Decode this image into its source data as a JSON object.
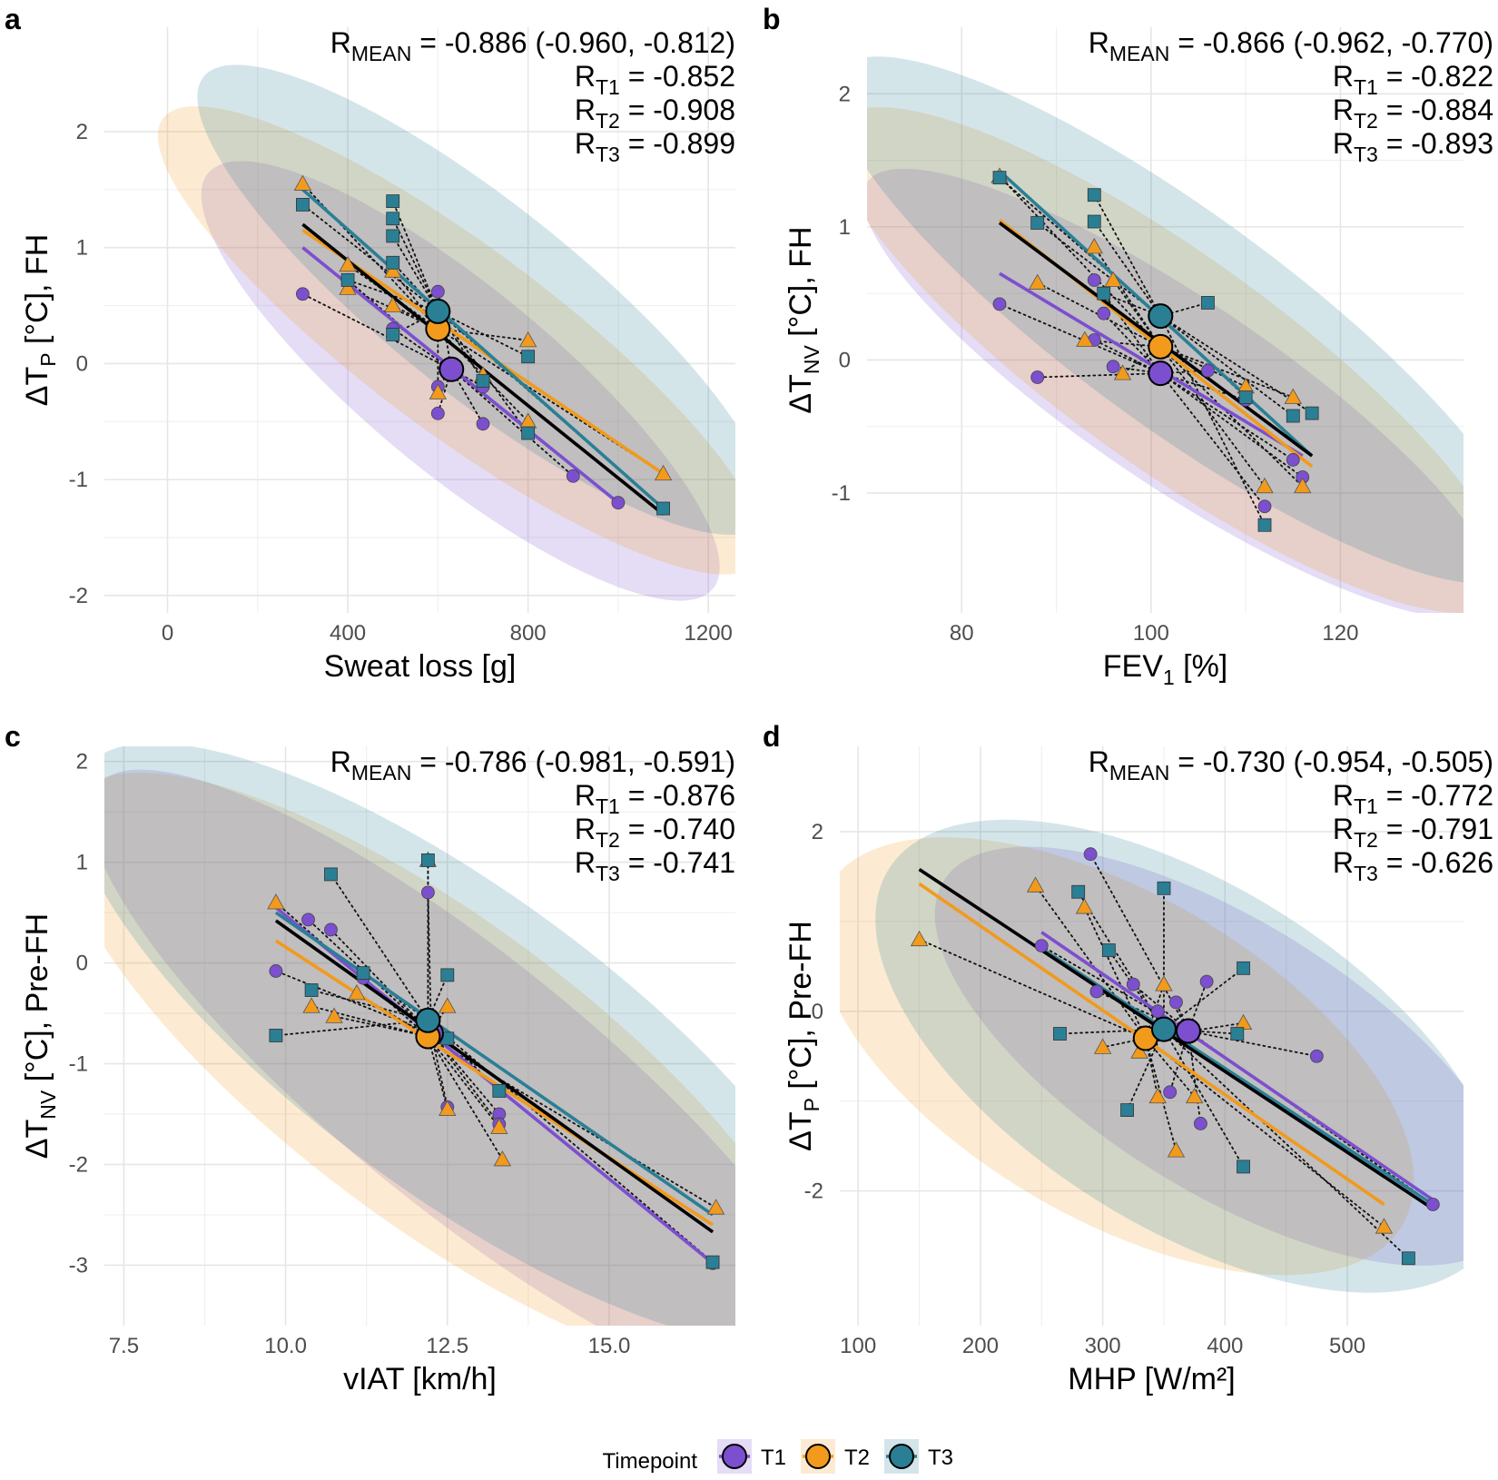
{
  "colors": {
    "T1": "#7c4fcf",
    "T2": "#f29a1c",
    "T3": "#2a7f95",
    "mean": "#000000",
    "grid": "#e6e6e6"
  },
  "legend": {
    "title": "Timepoint",
    "items": [
      {
        "label": "T1",
        "color": "#7c4fcf"
      },
      {
        "label": "T2",
        "color": "#f29a1c"
      },
      {
        "label": "T3",
        "color": "#2a7f95"
      }
    ]
  },
  "chart_data": [
    {
      "panel": "a",
      "type": "scatter",
      "xlabel": "Sweat loss [g]",
      "ylabel": {
        "main": "ΔT",
        "sub": "P",
        "rest": " [°C], FH"
      },
      "xlim": [
        -140,
        1260
      ],
      "ylim": [
        -2.15,
        2.9
      ],
      "xticks": [
        0,
        400,
        800,
        1200
      ],
      "xtick_labels": [
        "0",
        "400",
        "800",
        "1200"
      ],
      "yticks": [
        -2,
        -1,
        0,
        1,
        2
      ],
      "ytick_labels": [
        "-2",
        "-1",
        "0",
        "1",
        "2"
      ],
      "stats": [
        {
          "pre": "R",
          "sub": "MEAN",
          "post": " = -0.886 (-0.960, -0.812)"
        },
        {
          "pre": "R",
          "sub": "T1",
          "post": " = -0.852"
        },
        {
          "pre": "R",
          "sub": "T2",
          "post": " = -0.908"
        },
        {
          "pre": "R",
          "sub": "T3",
          "post": " = -0.899"
        }
      ],
      "series": [
        {
          "name": "T1",
          "mean": [
            630,
            -0.05
          ],
          "line": [
            [
              300,
              1.0
            ],
            [
              1000,
              -1.2
            ]
          ],
          "ellipse": {
            "cx": 650,
            "cy": -0.15,
            "rx": 560,
            "ry": 0.8,
            "angle_data": [
              1,
              -0.0032
            ]
          },
          "points": [
            [
              300,
              0.6
            ],
            [
              400,
              0.72
            ],
            [
              500,
              0.3
            ],
            [
              600,
              0.62
            ],
            [
              600,
              -0.2
            ],
            [
              600,
              -0.43
            ],
            [
              700,
              -0.52
            ],
            [
              700,
              -0.2
            ],
            [
              900,
              -0.97
            ],
            [
              1000,
              -1.2
            ]
          ]
        },
        {
          "name": "T2",
          "mean": [
            600,
            0.3
          ],
          "line": [
            [
              300,
              1.15
            ],
            [
              1100,
              -0.95
            ]
          ],
          "ellipse": {
            "cx": 650,
            "cy": 0.2,
            "rx": 660,
            "ry": 0.8,
            "angle_data": [
              1,
              -0.0029
            ]
          },
          "points": [
            [
              300,
              1.55
            ],
            [
              400,
              0.85
            ],
            [
              400,
              0.65
            ],
            [
              500,
              0.8
            ],
            [
              500,
              0.5
            ],
            [
              600,
              -0.25
            ],
            [
              700,
              -0.1
            ],
            [
              800,
              0.2
            ],
            [
              800,
              -0.5
            ],
            [
              1100,
              -0.95
            ]
          ]
        },
        {
          "name": "T3",
          "mean": [
            600,
            0.45
          ],
          "line": [
            [
              300,
              1.5
            ],
            [
              1100,
              -1.25
            ]
          ],
          "ellipse": {
            "cx": 700,
            "cy": 0.55,
            "rx": 620,
            "ry": 0.82,
            "angle_data": [
              1,
              -0.0031
            ]
          },
          "points": [
            [
              300,
              1.37
            ],
            [
              400,
              0.72
            ],
            [
              500,
              1.4
            ],
            [
              500,
              1.25
            ],
            [
              500,
              1.1
            ],
            [
              500,
              0.87
            ],
            [
              500,
              0.25
            ],
            [
              700,
              -0.15
            ],
            [
              800,
              0.06
            ],
            [
              800,
              -0.6
            ],
            [
              1100,
              -1.25
            ]
          ]
        }
      ],
      "mean_line": [
        [
          300,
          1.2
        ],
        [
          1100,
          -1.3
        ]
      ]
    },
    {
      "panel": "b",
      "type": "scatter",
      "xlabel": {
        "pre": "FEV",
        "sub": "1",
        "post": " [%]"
      },
      "ylabel": {
        "main": "ΔT",
        "sub": "NV",
        "rest": " [°C], FH"
      },
      "xlim": [
        70,
        133
      ],
      "ylim": [
        -1.9,
        2.5
      ],
      "xticks": [
        80,
        100,
        120
      ],
      "xtick_labels": [
        "80",
        "100",
        "120"
      ],
      "yticks": [
        -1,
        0,
        1,
        2
      ],
      "ytick_labels": [
        "-1",
        "0",
        "1",
        "2"
      ],
      "stats": [
        {
          "pre": "R",
          "sub": "MEAN",
          "post": " = -0.866 (-0.962, -0.770)"
        },
        {
          "pre": "R",
          "sub": "T1",
          "post": " = -0.822"
        },
        {
          "pre": "R",
          "sub": "T2",
          "post": " = -0.884"
        },
        {
          "pre": "R",
          "sub": "T3",
          "post": " = -0.893"
        }
      ],
      "series": [
        {
          "name": "T1",
          "mean": [
            101,
            -0.1
          ],
          "line": [
            [
              84,
              0.65
            ],
            [
              116,
              -0.72
            ]
          ],
          "ellipse": {
            "cx": 103,
            "cy": -0.25,
            "rx": 33,
            "ry": 0.7,
            "angle_data": [
              1,
              -0.048
            ]
          },
          "points": [
            [
              84,
              0.42
            ],
            [
              88,
              -0.13
            ],
            [
              94,
              0.6
            ],
            [
              95,
              0.35
            ],
            [
              94,
              0.15
            ],
            [
              96,
              -0.05
            ],
            [
              106,
              -0.08
            ],
            [
              110,
              -0.3
            ],
            [
              112,
              -1.1
            ],
            [
              116,
              -0.88
            ],
            [
              115,
              -0.75
            ]
          ]
        },
        {
          "name": "T2",
          "mean": [
            101,
            0.1
          ],
          "line": [
            [
              84,
              1.05
            ],
            [
              117,
              -0.8
            ]
          ],
          "ellipse": {
            "cx": 102,
            "cy": 0.0,
            "rx": 35,
            "ry": 0.8,
            "angle_data": [
              1,
              -0.051
            ]
          },
          "points": [
            [
              84,
              1.38
            ],
            [
              88,
              0.58
            ],
            [
              93,
              0.15
            ],
            [
              94,
              0.85
            ],
            [
              96,
              0.6
            ],
            [
              97,
              -0.1
            ],
            [
              110,
              -0.2
            ],
            [
              112,
              -0.95
            ],
            [
              115,
              -0.28
            ],
            [
              116,
              -0.95
            ]
          ]
        },
        {
          "name": "T3",
          "mean": [
            101,
            0.33
          ],
          "line": [
            [
              84,
              1.42
            ],
            [
              117,
              -0.72
            ]
          ],
          "ellipse": {
            "cx": 103,
            "cy": 0.3,
            "rx": 36,
            "ry": 0.8,
            "angle_data": [
              1,
              -0.052
            ]
          },
          "points": [
            [
              84,
              1.37
            ],
            [
              88,
              1.03
            ],
            [
              94,
              1.24
            ],
            [
              94,
              1.04
            ],
            [
              95,
              0.5
            ],
            [
              106,
              0.43
            ],
            [
              110,
              -0.28
            ],
            [
              112,
              -1.24
            ],
            [
              115,
              -0.42
            ],
            [
              117,
              -0.4
            ]
          ]
        }
      ],
      "mean_line": [
        [
          84,
          1.03
        ],
        [
          117,
          -0.72
        ]
      ]
    },
    {
      "panel": "c",
      "type": "scatter",
      "xlabel": "vIAT [km/h]",
      "ylabel": {
        "main": "ΔT",
        "sub": "NV",
        "rest": " [°C], Pre-FH"
      },
      "xlim": [
        7.2,
        16.95
      ],
      "ylim": [
        -3.6,
        2.15
      ],
      "xticks": [
        7.5,
        10,
        12.5,
        15
      ],
      "xtick_labels": [
        "7.5",
        "10.0",
        "12.5",
        "15.0"
      ],
      "yticks": [
        -3,
        -2,
        -1,
        0,
        1,
        2
      ],
      "ytick_labels": [
        "-3",
        "-2",
        "-1",
        "0",
        "1",
        "2"
      ],
      "stats": [
        {
          "pre": "R",
          "sub": "MEAN",
          "post": " = -0.786 (-0.981, -0.591)"
        },
        {
          "pre": "R",
          "sub": "T1",
          "post": " = -0.876"
        },
        {
          "pre": "R",
          "sub": "T2",
          "post": " = -0.740"
        },
        {
          "pre": "R",
          "sub": "T3",
          "post": " = -0.741"
        }
      ],
      "series": [
        {
          "name": "T1",
          "mean": [
            12.25,
            -0.7
          ],
          "line": [
            [
              9.85,
              0.55
            ],
            [
              16.6,
              -2.98
            ]
          ],
          "ellipse": {
            "cx": 12.8,
            "cy": -1.2,
            "rx": 5.7,
            "ry": 1.25,
            "angle_data": [
              1,
              -0.52
            ]
          },
          "points": [
            [
              9.85,
              -0.08
            ],
            [
              10.35,
              0.43
            ],
            [
              10.7,
              0.33
            ],
            [
              11.2,
              -0.15
            ],
            [
              12.2,
              0.7
            ],
            [
              12.5,
              -1.43
            ],
            [
              13.3,
              -1.5
            ],
            [
              13.3,
              -1.6
            ],
            [
              16.6,
              -2.98
            ]
          ]
        },
        {
          "name": "T2",
          "mean": [
            12.2,
            -0.73
          ],
          "line": [
            [
              9.85,
              0.22
            ],
            [
              16.6,
              -2.6
            ]
          ],
          "ellipse": {
            "cx": 12.4,
            "cy": -1.1,
            "rx": 5.7,
            "ry": 1.5,
            "angle_data": [
              1,
              -0.48
            ]
          },
          "points": [
            [
              9.85,
              0.6
            ],
            [
              10.4,
              -0.43
            ],
            [
              10.75,
              -0.53
            ],
            [
              11.1,
              -0.3
            ],
            [
              12.2,
              1.02
            ],
            [
              12.5,
              -1.45
            ],
            [
              12.5,
              -0.43
            ],
            [
              13.3,
              -1.63
            ],
            [
              13.35,
              -1.95
            ],
            [
              16.65,
              -2.43
            ]
          ]
        },
        {
          "name": "T3",
          "mean": [
            12.2,
            -0.57
          ],
          "line": [
            [
              9.85,
              0.5
            ],
            [
              16.6,
              -2.5
            ]
          ],
          "ellipse": {
            "cx": 12.7,
            "cy": -0.8,
            "rx": 5.8,
            "ry": 1.5,
            "angle_data": [
              1,
              -0.47
            ]
          },
          "points": [
            [
              9.85,
              -0.72
            ],
            [
              10.4,
              -0.27
            ],
            [
              10.7,
              0.88
            ],
            [
              11.2,
              -0.1
            ],
            [
              12.2,
              1.02
            ],
            [
              12.5,
              -0.12
            ],
            [
              12.5,
              -0.75
            ],
            [
              13.3,
              -1.27
            ],
            [
              16.6,
              -2.97
            ]
          ]
        }
      ],
      "mean_line": [
        [
          9.85,
          0.42
        ],
        [
          16.6,
          -2.67
        ]
      ]
    },
    {
      "panel": "d",
      "type": "scatter",
      "xlabel": "MHP [W/m²]",
      "ylabel": {
        "main": "ΔT",
        "sub": "P",
        "rest": " [°C], Pre-FH"
      },
      "xlim": [
        85,
        595
      ],
      "ylim": [
        -3.5,
        2.95
      ],
      "xticks": [
        100,
        200,
        300,
        400,
        500
      ],
      "xtick_labels": [
        "100",
        "200",
        "300",
        "400",
        "500"
      ],
      "yticks": [
        -2,
        0,
        2
      ],
      "ytick_labels": [
        "-2",
        "0",
        "2"
      ],
      "stats": [
        {
          "pre": "R",
          "sub": "MEAN",
          "post": " = -0.730 (-0.954, -0.505)"
        },
        {
          "pre": "R",
          "sub": "T1",
          "post": " = -0.772"
        },
        {
          "pre": "R",
          "sub": "T2",
          "post": " = -0.791"
        },
        {
          "pre": "R",
          "sub": "T3",
          "post": " = -0.626"
        }
      ],
      "series": [
        {
          "name": "T1",
          "mean": [
            370,
            -0.22
          ],
          "line": [
            [
              250,
              0.88
            ],
            [
              570,
              -2.1
            ]
          ],
          "ellipse": {
            "cx": 400,
            "cy": -0.5,
            "rx": 230,
            "ry": 1.5,
            "angle_data": [
              1,
              -0.0085
            ]
          },
          "points": [
            [
              250,
              0.73
            ],
            [
              290,
              1.75
            ],
            [
              295,
              0.22
            ],
            [
              325,
              0.3
            ],
            [
              345,
              0.0
            ],
            [
              355,
              -0.9
            ],
            [
              360,
              0.1
            ],
            [
              380,
              -1.25
            ],
            [
              385,
              0.33
            ],
            [
              475,
              -0.5
            ],
            [
              570,
              -2.15
            ]
          ]
        },
        {
          "name": "T2",
          "mean": [
            335,
            -0.3
          ],
          "line": [
            [
              150,
              1.42
            ],
            [
              530,
              -2.15
            ]
          ],
          "ellipse": {
            "cx": 310,
            "cy": -0.5,
            "rx": 235,
            "ry": 1.8,
            "angle_data": [
              1,
              -0.008
            ]
          },
          "points": [
            [
              150,
              0.8
            ],
            [
              245,
              1.4
            ],
            [
              285,
              1.16
            ],
            [
              300,
              -0.4
            ],
            [
              330,
              -0.45
            ],
            [
              345,
              -0.95
            ],
            [
              350,
              0.3
            ],
            [
              360,
              -1.55
            ],
            [
              375,
              -0.95
            ],
            [
              415,
              -0.13
            ],
            [
              530,
              -2.4
            ]
          ]
        },
        {
          "name": "T3",
          "mean": [
            350,
            -0.2
          ],
          "line": [
            [
              250,
              0.7
            ],
            [
              570,
              -2.15
            ]
          ],
          "ellipse": {
            "cx": 370,
            "cy": -0.5,
            "rx": 245,
            "ry": 1.9,
            "angle_data": [
              1,
              -0.0085
            ]
          },
          "points": [
            [
              265,
              -0.25
            ],
            [
              280,
              1.33
            ],
            [
              305,
              0.68
            ],
            [
              320,
              -1.1
            ],
            [
              350,
              1.37
            ],
            [
              410,
              -0.25
            ],
            [
              415,
              -1.73
            ],
            [
              415,
              0.48
            ],
            [
              550,
              -2.75
            ]
          ]
        }
      ],
      "mean_line": [
        [
          150,
          1.58
        ],
        [
          570,
          -2.2
        ]
      ]
    }
  ]
}
